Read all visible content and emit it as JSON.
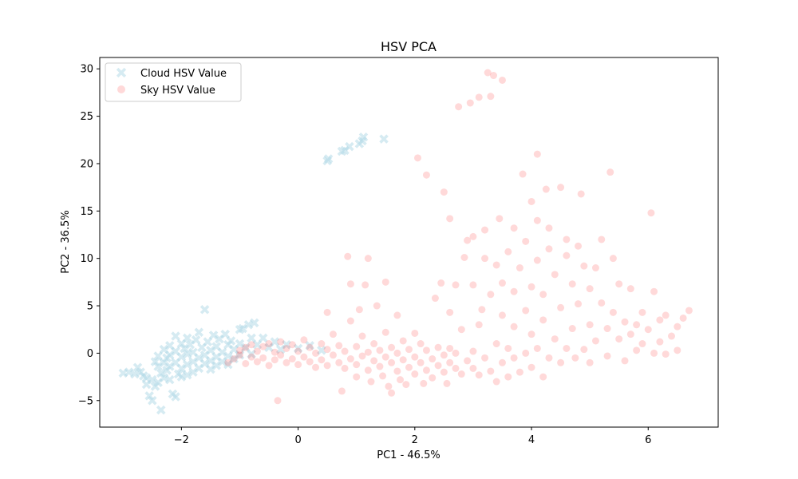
{
  "chart_data": {
    "type": "scatter",
    "title": "HSV PCA",
    "xlabel": "PC1 - 46.5%",
    "ylabel": "PC2 - 36.5%",
    "xlim": [
      -3.4,
      7.2
    ],
    "ylim": [
      -7.8,
      31.2
    ],
    "xticks": [
      -2,
      0,
      2,
      4,
      6
    ],
    "xtick_labels": [
      "−2",
      "0",
      "2",
      "4",
      "6"
    ],
    "yticks": [
      -5,
      0,
      5,
      10,
      15,
      20,
      25,
      30
    ],
    "ytick_labels": [
      "−5",
      "0",
      "5",
      "10",
      "15",
      "20",
      "25",
      "30"
    ],
    "grid": false,
    "legend_position": "top-left",
    "series": [
      {
        "name": "Cloud HSV Value",
        "marker": "X",
        "color": "#add8e6",
        "alpha": 0.5,
        "points": [
          [
            -3.0,
            -2.1
          ],
          [
            -2.9,
            -2.0
          ],
          [
            -2.8,
            -2.2
          ],
          [
            -2.75,
            -1.5
          ],
          [
            -2.7,
            -2.0
          ],
          [
            -2.65,
            -2.4
          ],
          [
            -2.6,
            -2.6
          ],
          [
            -2.6,
            -3.3
          ],
          [
            -2.55,
            -4.5
          ],
          [
            -2.5,
            -5.0
          ],
          [
            -2.5,
            -2.8
          ],
          [
            -2.45,
            -0.9
          ],
          [
            -2.45,
            -3.5
          ],
          [
            -2.4,
            -3.1
          ],
          [
            -2.4,
            -1.4
          ],
          [
            -2.4,
            -0.3
          ],
          [
            -2.35,
            -6.0
          ],
          [
            -2.35,
            -2.1
          ],
          [
            -2.3,
            0.4
          ],
          [
            -2.3,
            -1.0
          ],
          [
            -2.3,
            -2.6
          ],
          [
            -2.25,
            -0.5
          ],
          [
            -2.25,
            -1.8
          ],
          [
            -2.2,
            0.8
          ],
          [
            -2.2,
            -0.2
          ],
          [
            -2.2,
            -1.4
          ],
          [
            -2.2,
            -2.8
          ],
          [
            -2.15,
            -4.3
          ],
          [
            -2.1,
            -4.6
          ],
          [
            -2.1,
            1.8
          ],
          [
            -2.1,
            0.2
          ],
          [
            -2.1,
            -1.0
          ],
          [
            -2.05,
            -2.2
          ],
          [
            -2.0,
            1.0
          ],
          [
            -2.0,
            -0.4
          ],
          [
            -2.0,
            -1.6
          ],
          [
            -2.0,
            -2.5
          ],
          [
            -1.95,
            0.5
          ],
          [
            -1.9,
            1.6
          ],
          [
            -1.9,
            -0.1
          ],
          [
            -1.9,
            -1.2
          ],
          [
            -1.9,
            -2.3
          ],
          [
            -1.85,
            0.9
          ],
          [
            -1.8,
            0.1
          ],
          [
            -1.8,
            -0.9
          ],
          [
            -1.8,
            -2.0
          ],
          [
            -1.75,
            1.4
          ],
          [
            -1.7,
            -0.5
          ],
          [
            -1.7,
            -1.6
          ],
          [
            -1.7,
            2.2
          ],
          [
            -1.65,
            0.6
          ],
          [
            -1.6,
            -0.2
          ],
          [
            -1.6,
            -1.1
          ],
          [
            -1.6,
            4.6
          ],
          [
            -1.55,
            1.2
          ],
          [
            -1.5,
            0.3
          ],
          [
            -1.5,
            -0.8
          ],
          [
            -1.5,
            -1.7
          ],
          [
            -1.45,
            1.9
          ],
          [
            -1.4,
            0.7
          ],
          [
            -1.4,
            -0.4
          ],
          [
            -1.4,
            -1.3
          ],
          [
            -1.35,
            1.5
          ],
          [
            -1.3,
            0.1
          ],
          [
            -1.3,
            -0.9
          ],
          [
            -1.25,
            2.0
          ],
          [
            -1.2,
            0.9
          ],
          [
            -1.2,
            -0.3
          ],
          [
            -1.2,
            -1.2
          ],
          [
            -1.15,
            1.3
          ],
          [
            -1.1,
            0.4
          ],
          [
            -1.1,
            -0.6
          ],
          [
            -1.0,
            2.5
          ],
          [
            -1.0,
            1.0
          ],
          [
            -1.0,
            -0.2
          ],
          [
            -0.95,
            2.6
          ],
          [
            -0.9,
            0.6
          ],
          [
            -0.85,
            3.0
          ],
          [
            -0.8,
            1.6
          ],
          [
            -0.8,
            -0.1
          ],
          [
            -0.75,
            3.2
          ],
          [
            -0.7,
            0.9
          ],
          [
            -0.6,
            1.6
          ],
          [
            -0.5,
            0.6
          ],
          [
            -0.4,
            1.2
          ],
          [
            -0.3,
            0.4
          ],
          [
            -0.2,
            0.9
          ],
          [
            0.0,
            0.5
          ],
          [
            0.2,
            0.8
          ],
          [
            0.4,
            0.3
          ],
          [
            0.5,
            20.3
          ],
          [
            0.52,
            20.5
          ],
          [
            0.75,
            21.3
          ],
          [
            0.8,
            21.4
          ],
          [
            0.88,
            21.8
          ],
          [
            1.05,
            22.1
          ],
          [
            1.1,
            22.4
          ],
          [
            1.12,
            22.8
          ],
          [
            1.47,
            22.6
          ]
        ]
      },
      {
        "name": "Sky HSV Value",
        "marker": "o",
        "color": "#ff0000",
        "alpha": 0.15,
        "points": [
          [
            -1.2,
            -1.0
          ],
          [
            -1.1,
            -0.6
          ],
          [
            -1.0,
            -0.2
          ],
          [
            -1.0,
            0.3
          ],
          [
            -0.9,
            -1.1
          ],
          [
            -0.9,
            0.6
          ],
          [
            -0.8,
            -0.4
          ],
          [
            -0.8,
            0.9
          ],
          [
            -0.7,
            -0.9
          ],
          [
            -0.7,
            0.2
          ],
          [
            -0.6,
            0.7
          ],
          [
            -0.6,
            -0.5
          ],
          [
            -0.5,
            1.0
          ],
          [
            -0.5,
            -1.3
          ],
          [
            -0.4,
            0.1
          ],
          [
            -0.4,
            -0.7
          ],
          [
            -0.35,
            -5.0
          ],
          [
            -0.3,
            1.2
          ],
          [
            -0.3,
            -0.2
          ],
          [
            -0.2,
            -1.0
          ],
          [
            -0.2,
            0.5
          ],
          [
            -0.1,
            -0.6
          ],
          [
            -0.1,
            0.9
          ],
          [
            0.0,
            0.2
          ],
          [
            0.0,
            -1.2
          ],
          [
            0.1,
            1.4
          ],
          [
            0.1,
            -0.4
          ],
          [
            0.2,
            -0.9
          ],
          [
            0.2,
            0.6
          ],
          [
            0.3,
            -1.5
          ],
          [
            0.3,
            0.0
          ],
          [
            0.4,
            1.0
          ],
          [
            0.4,
            -0.7
          ],
          [
            0.5,
            -1.3
          ],
          [
            0.5,
            0.4
          ],
          [
            0.5,
            4.3
          ],
          [
            0.6,
            -0.2
          ],
          [
            0.6,
            2.0
          ],
          [
            0.7,
            -1.0
          ],
          [
            0.7,
            0.8
          ],
          [
            0.75,
            -4.0
          ],
          [
            0.8,
            -1.6
          ],
          [
            0.8,
            0.2
          ],
          [
            0.85,
            10.2
          ],
          [
            0.9,
            -0.6
          ],
          [
            0.9,
            3.4
          ],
          [
            0.9,
            7.3
          ],
          [
            1.0,
            -1.2
          ],
          [
            1.0,
            0.7
          ],
          [
            1.0,
            -2.5
          ],
          [
            1.05,
            4.6
          ],
          [
            1.1,
            -0.3
          ],
          [
            1.1,
            1.8
          ],
          [
            1.15,
            7.2
          ],
          [
            1.2,
            -1.8
          ],
          [
            1.2,
            0.1
          ],
          [
            1.2,
            10.0
          ],
          [
            1.25,
            -3.0
          ],
          [
            1.3,
            -0.8
          ],
          [
            1.3,
            1.0
          ],
          [
            1.35,
            5.0
          ],
          [
            1.4,
            -1.4
          ],
          [
            1.4,
            0.3
          ],
          [
            1.45,
            -2.4
          ],
          [
            1.5,
            -0.4
          ],
          [
            1.5,
            2.2
          ],
          [
            1.5,
            7.5
          ],
          [
            1.55,
            -3.5
          ],
          [
            1.6,
            -1.0
          ],
          [
            1.6,
            0.6
          ],
          [
            1.6,
            -4.2
          ],
          [
            1.7,
            -1.9
          ],
          [
            1.7,
            0.0
          ],
          [
            1.7,
            4.0
          ],
          [
            1.75,
            -2.8
          ],
          [
            1.8,
            -0.7
          ],
          [
            1.8,
            1.3
          ],
          [
            1.85,
            -3.3
          ],
          [
            1.9,
            -1.5
          ],
          [
            1.9,
            0.4
          ],
          [
            2.0,
            -2.2
          ],
          [
            2.0,
            -0.4
          ],
          [
            2.0,
            2.1
          ],
          [
            2.05,
            20.6
          ],
          [
            2.1,
            -1.0
          ],
          [
            2.1,
            1.0
          ],
          [
            2.15,
            -3.2
          ],
          [
            2.2,
            18.8
          ],
          [
            2.2,
            -1.8
          ],
          [
            2.2,
            0.3
          ],
          [
            2.3,
            -2.6
          ],
          [
            2.3,
            -0.6
          ],
          [
            2.35,
            5.8
          ],
          [
            2.4,
            -1.3
          ],
          [
            2.4,
            0.6
          ],
          [
            2.45,
            7.4
          ],
          [
            2.5,
            -2.0
          ],
          [
            2.5,
            -0.2
          ],
          [
            2.5,
            17.0
          ],
          [
            2.55,
            -3.2
          ],
          [
            2.6,
            -1.0
          ],
          [
            2.6,
            0.5
          ],
          [
            2.6,
            4.3
          ],
          [
            2.6,
            14.2
          ],
          [
            2.7,
            -1.6
          ],
          [
            2.7,
            0.0
          ],
          [
            2.7,
            7.2
          ],
          [
            2.75,
            26.0
          ],
          [
            2.8,
            -2.2
          ],
          [
            2.8,
            2.5
          ],
          [
            2.85,
            10.1
          ],
          [
            2.9,
            -0.8
          ],
          [
            2.9,
            11.9
          ],
          [
            2.95,
            26.4
          ],
          [
            3.0,
            -1.6
          ],
          [
            3.0,
            0.2
          ],
          [
            3.0,
            7.2
          ],
          [
            3.0,
            12.3
          ],
          [
            3.1,
            -2.3
          ],
          [
            3.1,
            3.0
          ],
          [
            3.1,
            27.0
          ],
          [
            3.15,
            4.6
          ],
          [
            3.2,
            -0.5
          ],
          [
            3.2,
            10.0
          ],
          [
            3.2,
            13.0
          ],
          [
            3.25,
            29.6
          ],
          [
            3.3,
            -1.9
          ],
          [
            3.3,
            6.2
          ],
          [
            3.3,
            27.1
          ],
          [
            3.35,
            29.3
          ],
          [
            3.4,
            -3.0
          ],
          [
            3.4,
            1.0
          ],
          [
            3.4,
            9.3
          ],
          [
            3.45,
            14.2
          ],
          [
            3.5,
            -1.0
          ],
          [
            3.5,
            4.0
          ],
          [
            3.5,
            7.4
          ],
          [
            3.5,
            28.8
          ],
          [
            3.6,
            -2.5
          ],
          [
            3.6,
            0.5
          ],
          [
            3.6,
            10.7
          ],
          [
            3.7,
            -0.5
          ],
          [
            3.7,
            2.8
          ],
          [
            3.7,
            6.5
          ],
          [
            3.7,
            13.2
          ],
          [
            3.8,
            -2.0
          ],
          [
            3.8,
            9.0
          ],
          [
            3.85,
            18.9
          ],
          [
            3.9,
            0.0
          ],
          [
            3.9,
            4.5
          ],
          [
            3.9,
            11.8
          ],
          [
            4.0,
            -1.5
          ],
          [
            4.0,
            2.0
          ],
          [
            4.0,
            7.0
          ],
          [
            4.0,
            16.0
          ],
          [
            4.1,
            0.5
          ],
          [
            4.1,
            9.8
          ],
          [
            4.1,
            14.0
          ],
          [
            4.1,
            21.0
          ],
          [
            4.2,
            -2.5
          ],
          [
            4.2,
            3.5
          ],
          [
            4.2,
            6.2
          ],
          [
            4.25,
            17.3
          ],
          [
            4.3,
            -0.5
          ],
          [
            4.3,
            11.0
          ],
          [
            4.3,
            13.2
          ],
          [
            4.4,
            1.5
          ],
          [
            4.4,
            8.3
          ],
          [
            4.5,
            -1.0
          ],
          [
            4.5,
            4.8
          ],
          [
            4.5,
            17.5
          ],
          [
            4.6,
            0.5
          ],
          [
            4.6,
            10.3
          ],
          [
            4.6,
            12.0
          ],
          [
            4.7,
            2.6
          ],
          [
            4.7,
            7.3
          ],
          [
            4.75,
            -0.5
          ],
          [
            4.8,
            5.2
          ],
          [
            4.8,
            11.3
          ],
          [
            4.85,
            16.8
          ],
          [
            4.9,
            0.4
          ],
          [
            4.9,
            9.2
          ],
          [
            5.0,
            3.0
          ],
          [
            5.0,
            6.8
          ],
          [
            5.0,
            -1.0
          ],
          [
            5.1,
            9.0
          ],
          [
            5.1,
            1.3
          ],
          [
            5.2,
            5.3
          ],
          [
            5.2,
            12.0
          ],
          [
            5.3,
            2.6
          ],
          [
            5.3,
            -0.3
          ],
          [
            5.35,
            19.1
          ],
          [
            5.4,
            4.3
          ],
          [
            5.4,
            10.0
          ],
          [
            5.5,
            1.5
          ],
          [
            5.5,
            7.3
          ],
          [
            5.6,
            3.3
          ],
          [
            5.6,
            -0.8
          ],
          [
            5.7,
            2.0
          ],
          [
            5.7,
            6.8
          ],
          [
            5.8,
            0.3
          ],
          [
            5.8,
            3.0
          ],
          [
            5.9,
            4.3
          ],
          [
            5.9,
            1.0
          ],
          [
            6.0,
            2.5
          ],
          [
            6.05,
            14.8
          ],
          [
            6.1,
            0.0
          ],
          [
            6.1,
            6.5
          ],
          [
            6.2,
            3.5
          ],
          [
            6.2,
            1.2
          ],
          [
            6.3,
            -0.1
          ],
          [
            6.3,
            4.0
          ],
          [
            6.4,
            1.8
          ],
          [
            6.5,
            2.8
          ],
          [
            6.5,
            0.3
          ],
          [
            6.6,
            3.7
          ],
          [
            6.7,
            4.5
          ]
        ]
      }
    ]
  }
}
